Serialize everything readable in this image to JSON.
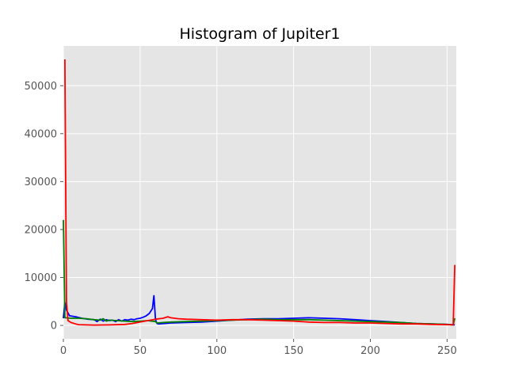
{
  "chart_data": {
    "type": "line",
    "title": "Histogram of Jupiter1",
    "xlabel": "",
    "ylabel": "",
    "xlim": [
      0,
      256
    ],
    "ylim": [
      -2800,
      58300
    ],
    "xticks": [
      0,
      50,
      100,
      150,
      200,
      250
    ],
    "yticks": [
      0,
      10000,
      20000,
      30000,
      40000,
      50000
    ],
    "grid": true,
    "series": [
      {
        "color": "#0000ff",
        "points": [
          [
            0,
            1500
          ],
          [
            1,
            4800
          ],
          [
            2,
            3200
          ],
          [
            4,
            2000
          ],
          [
            8,
            1800
          ],
          [
            12,
            1500
          ],
          [
            16,
            1300
          ],
          [
            20,
            1200
          ],
          [
            22,
            800
          ],
          [
            24,
            1300
          ],
          [
            26,
            900
          ],
          [
            28,
            1200
          ],
          [
            30,
            1000
          ],
          [
            32,
            1100
          ],
          [
            34,
            800
          ],
          [
            36,
            1200
          ],
          [
            38,
            900
          ],
          [
            40,
            1200
          ],
          [
            42,
            1100
          ],
          [
            44,
            1300
          ],
          [
            46,
            1200
          ],
          [
            48,
            1400
          ],
          [
            50,
            1500
          ],
          [
            52,
            1700
          ],
          [
            54,
            2000
          ],
          [
            56,
            2500
          ],
          [
            58,
            3500
          ],
          [
            59,
            6200
          ],
          [
            60,
            1200
          ],
          [
            61,
            400
          ],
          [
            62,
            300
          ],
          [
            66,
            400
          ],
          [
            70,
            500
          ],
          [
            80,
            600
          ],
          [
            90,
            700
          ],
          [
            100,
            900
          ],
          [
            110,
            1100
          ],
          [
            120,
            1300
          ],
          [
            130,
            1400
          ],
          [
            140,
            1400
          ],
          [
            150,
            1500
          ],
          [
            160,
            1600
          ],
          [
            170,
            1500
          ],
          [
            180,
            1400
          ],
          [
            190,
            1200
          ],
          [
            200,
            1000
          ],
          [
            210,
            800
          ],
          [
            220,
            600
          ],
          [
            230,
            400
          ],
          [
            240,
            300
          ],
          [
            250,
            200
          ],
          [
            255,
            100
          ]
        ]
      },
      {
        "color": "#008000",
        "points": [
          [
            0,
            22000
          ],
          [
            1,
            1600
          ],
          [
            5,
            1500
          ],
          [
            10,
            1500
          ],
          [
            15,
            1400
          ],
          [
            20,
            1200
          ],
          [
            24,
            1100
          ],
          [
            26,
            1400
          ],
          [
            28,
            900
          ],
          [
            30,
            1100
          ],
          [
            35,
            1000
          ],
          [
            40,
            900
          ],
          [
            45,
            800
          ],
          [
            50,
            900
          ],
          [
            55,
            1000
          ],
          [
            60,
            800
          ],
          [
            61,
            500
          ],
          [
            65,
            600
          ],
          [
            70,
            700
          ],
          [
            80,
            800
          ],
          [
            90,
            900
          ],
          [
            100,
            1000
          ],
          [
            110,
            1100
          ],
          [
            120,
            1200
          ],
          [
            130,
            1300
          ],
          [
            140,
            1200
          ],
          [
            150,
            1200
          ],
          [
            160,
            1200
          ],
          [
            170,
            1100
          ],
          [
            180,
            1000
          ],
          [
            190,
            900
          ],
          [
            200,
            800
          ],
          [
            210,
            700
          ],
          [
            220,
            600
          ],
          [
            230,
            400
          ],
          [
            240,
            300
          ],
          [
            250,
            200
          ],
          [
            254,
            100
          ],
          [
            255,
            1500
          ]
        ]
      },
      {
        "color": "#ff0000",
        "points": [
          [
            1,
            55500
          ],
          [
            2,
            5000
          ],
          [
            3,
            1000
          ],
          [
            5,
            600
          ],
          [
            8,
            300
          ],
          [
            10,
            150
          ],
          [
            15,
            100
          ],
          [
            20,
            80
          ],
          [
            30,
            100
          ],
          [
            40,
            200
          ],
          [
            45,
            400
          ],
          [
            50,
            700
          ],
          [
            55,
            1000
          ],
          [
            60,
            1300
          ],
          [
            65,
            1500
          ],
          [
            68,
            1800
          ],
          [
            70,
            1600
          ],
          [
            75,
            1400
          ],
          [
            80,
            1300
          ],
          [
            90,
            1200
          ],
          [
            100,
            1100
          ],
          [
            110,
            1200
          ],
          [
            120,
            1200
          ],
          [
            130,
            1100
          ],
          [
            140,
            1000
          ],
          [
            150,
            900
          ],
          [
            160,
            700
          ],
          [
            170,
            600
          ],
          [
            180,
            600
          ],
          [
            190,
            500
          ],
          [
            200,
            500
          ],
          [
            210,
            400
          ],
          [
            220,
            300
          ],
          [
            230,
            300
          ],
          [
            240,
            200
          ],
          [
            250,
            150
          ],
          [
            254,
            100
          ],
          [
            255,
            12600
          ]
        ]
      }
    ]
  }
}
